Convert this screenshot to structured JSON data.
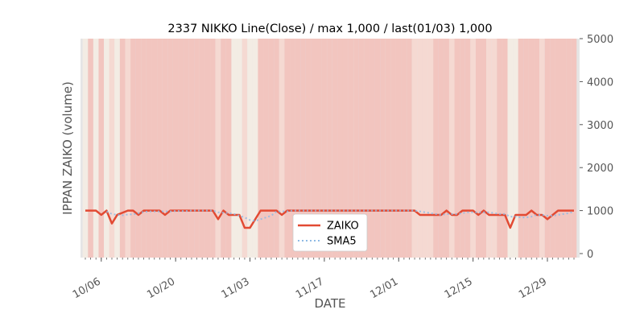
{
  "chart_data": {
    "type": "line",
    "title": "2337 NIKKO Line(Close) / max 1,000 / last(01/03) 1,000",
    "xlabel": "DATE",
    "ylabel": "IPPAN ZAIKO (volume)",
    "ylim": [
      0,
      5000
    ],
    "y_ticks": [
      "0",
      "1000",
      "2000",
      "3000",
      "4000",
      "5000"
    ],
    "y_axis_side": "right",
    "x_tick_labels": [
      "10/06",
      "10/20",
      "11/03",
      "11/17",
      "12/01",
      "12/15",
      "12/29"
    ],
    "grid": false,
    "legend_position": "lower-center",
    "x": [
      "10/03",
      "10/04",
      "10/05",
      "10/06",
      "10/07",
      "10/08",
      "10/09",
      "10/10",
      "10/11",
      "10/12",
      "10/13",
      "10/14",
      "10/15",
      "10/16",
      "10/17",
      "10/18",
      "10/19",
      "10/20",
      "10/21",
      "10/22",
      "10/23",
      "10/24",
      "10/25",
      "10/26",
      "10/27",
      "10/28",
      "10/29",
      "10/30",
      "10/31",
      "11/01",
      "11/02",
      "11/03",
      "11/04",
      "11/05",
      "11/06",
      "11/07",
      "11/08",
      "11/09",
      "11/10",
      "11/11",
      "11/12",
      "11/13",
      "11/14",
      "11/15",
      "11/16",
      "11/17",
      "11/18",
      "11/19",
      "11/20",
      "11/21",
      "11/22",
      "11/23",
      "11/24",
      "11/25",
      "11/26",
      "11/27",
      "11/28",
      "11/29",
      "11/30",
      "12/01",
      "12/02",
      "12/03",
      "12/04",
      "12/05",
      "12/06",
      "12/07",
      "12/08",
      "12/09",
      "12/10",
      "12/11",
      "12/12",
      "12/13",
      "12/14",
      "12/15",
      "12/16",
      "12/17",
      "12/18",
      "12/19",
      "12/20",
      "12/21",
      "12/22",
      "12/23",
      "12/24",
      "12/25",
      "12/26",
      "12/27",
      "12/28",
      "12/29",
      "12/30",
      "12/31",
      "01/01",
      "01/02",
      "01/03"
    ],
    "series": [
      {
        "name": "ZAIKO",
        "color": "#E24A33",
        "style": "solid",
        "values": [
          1000,
          1000,
          1000,
          900,
          1000,
          700,
          900,
          950,
          1000,
          1000,
          900,
          1000,
          1000,
          1000,
          1000,
          900,
          1000,
          1000,
          1000,
          1000,
          1000,
          1000,
          1000,
          1000,
          1000,
          800,
          1000,
          900,
          900,
          900,
          600,
          600,
          800,
          1000,
          1000,
          1000,
          1000,
          900,
          1000,
          1000,
          1000,
          1000,
          1000,
          1000,
          1000,
          1000,
          1000,
          1000,
          1000,
          1000,
          1000,
          1000,
          1000,
          1000,
          1000,
          1000,
          1000,
          1000,
          1000,
          1000,
          1000,
          1000,
          1000,
          900,
          900,
          900,
          900,
          900,
          1000,
          900,
          900,
          1000,
          1000,
          1000,
          900,
          1000,
          900,
          900,
          900,
          900,
          600,
          900,
          900,
          900,
          1000,
          900,
          900,
          800,
          900,
          1000,
          1000,
          1000,
          1000
        ]
      },
      {
        "name": "SMA5",
        "color": "#8EBAE5",
        "style": "dotted",
        "values": [
          null,
          null,
          null,
          null,
          980,
          920,
          900,
          890,
          910,
          910,
          940,
          970,
          980,
          980,
          980,
          980,
          980,
          990,
          990,
          990,
          1000,
          1000,
          1000,
          1000,
          1000,
          960,
          950,
          940,
          920,
          880,
          840,
          780,
          760,
          800,
          840,
          880,
          980,
          980,
          980,
          1000,
          1000,
          1000,
          1000,
          1000,
          1000,
          1000,
          1000,
          1000,
          1000,
          1000,
          1000,
          1000,
          1000,
          1000,
          1000,
          1000,
          1000,
          1000,
          1000,
          1000,
          1000,
          1000,
          1000,
          980,
          960,
          940,
          920,
          900,
          920,
          920,
          920,
          940,
          960,
          960,
          960,
          960,
          960,
          940,
          920,
          920,
          860,
          860,
          840,
          840,
          860,
          900,
          900,
          880,
          880,
          900,
          920,
          940,
          980
        ]
      }
    ],
    "background_bands": [
      2,
      0,
      2,
      0,
      2,
      1,
      2,
      0,
      1,
      0,
      0,
      0,
      0,
      0,
      0,
      0,
      0,
      0,
      0,
      0,
      0,
      0,
      0,
      0,
      0,
      1,
      0,
      0,
      2,
      2,
      1,
      2,
      2,
      0,
      0,
      0,
      0,
      1,
      0,
      0,
      0,
      0,
      0,
      0,
      0,
      0,
      0,
      0,
      0,
      0,
      0,
      0,
      0,
      0,
      0,
      0,
      0,
      0,
      0,
      0,
      0,
      0,
      1,
      1,
      1,
      1,
      0,
      0,
      0,
      1,
      0,
      0,
      0,
      1,
      0,
      0,
      1,
      1,
      0,
      0,
      2,
      2,
      0,
      0,
      0,
      0,
      1,
      0,
      0,
      0,
      0,
      0,
      0
    ],
    "background_band_colors": [
      "#F2C5BF",
      "#F5D9D2",
      "#F3ECE4"
    ]
  }
}
